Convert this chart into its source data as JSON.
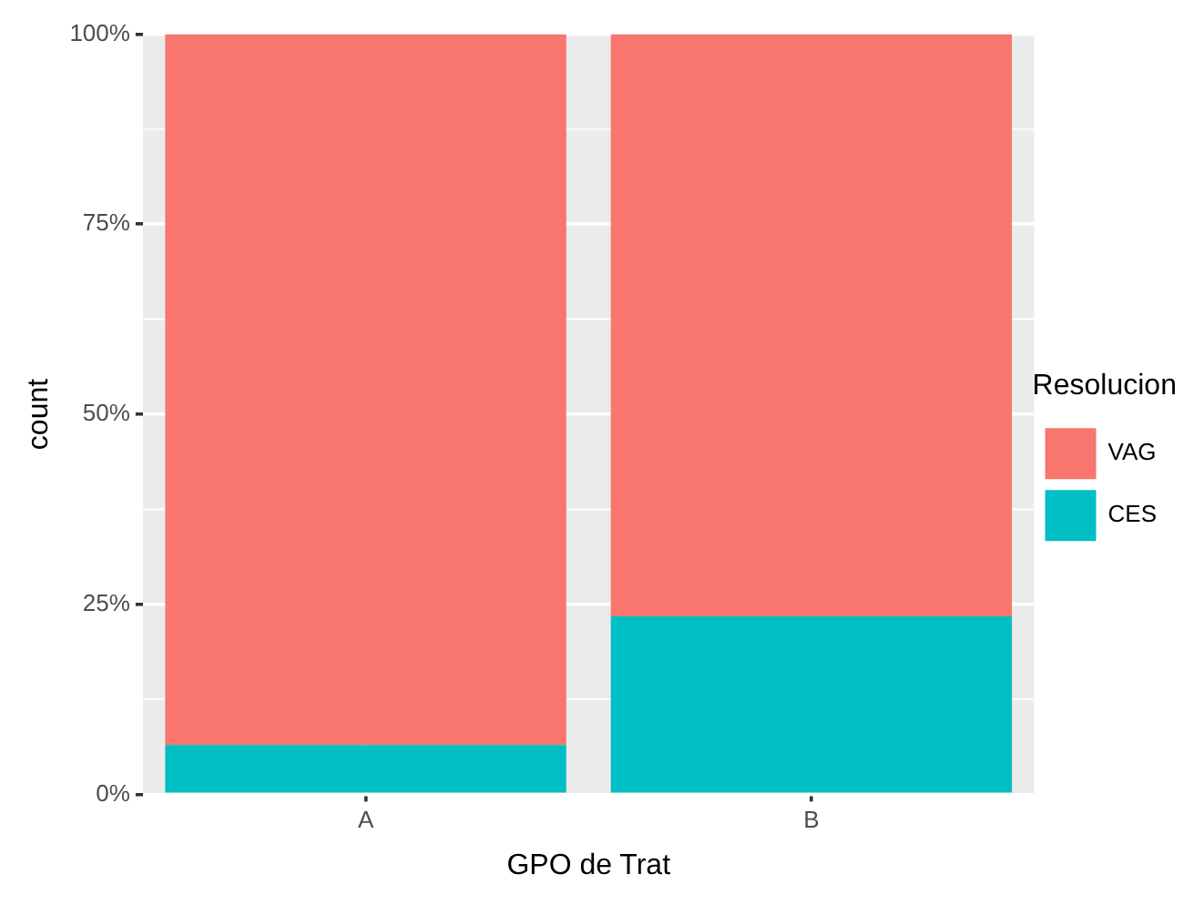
{
  "chart_data": {
    "type": "bar",
    "stacked": true,
    "categories": [
      "A",
      "B"
    ],
    "xlabel": "GPO de Trat",
    "ylabel": "count",
    "legend_title": "Resolucion",
    "legend": "right",
    "grid": true,
    "ylim": [
      0,
      100
    ],
    "yticks": [
      {
        "value": 0,
        "label": "0%"
      },
      {
        "value": 25,
        "label": "25%"
      },
      {
        "value": 50,
        "label": "50%"
      },
      {
        "value": 75,
        "label": "75%"
      },
      {
        "value": 100,
        "label": "100%"
      }
    ],
    "series": [
      {
        "name": "CES",
        "color": "#00bfc4",
        "values": [
          6.5,
          23.4
        ]
      },
      {
        "name": "VAG",
        "color": "#f8766d",
        "values": [
          93.5,
          76.6
        ]
      }
    ]
  }
}
